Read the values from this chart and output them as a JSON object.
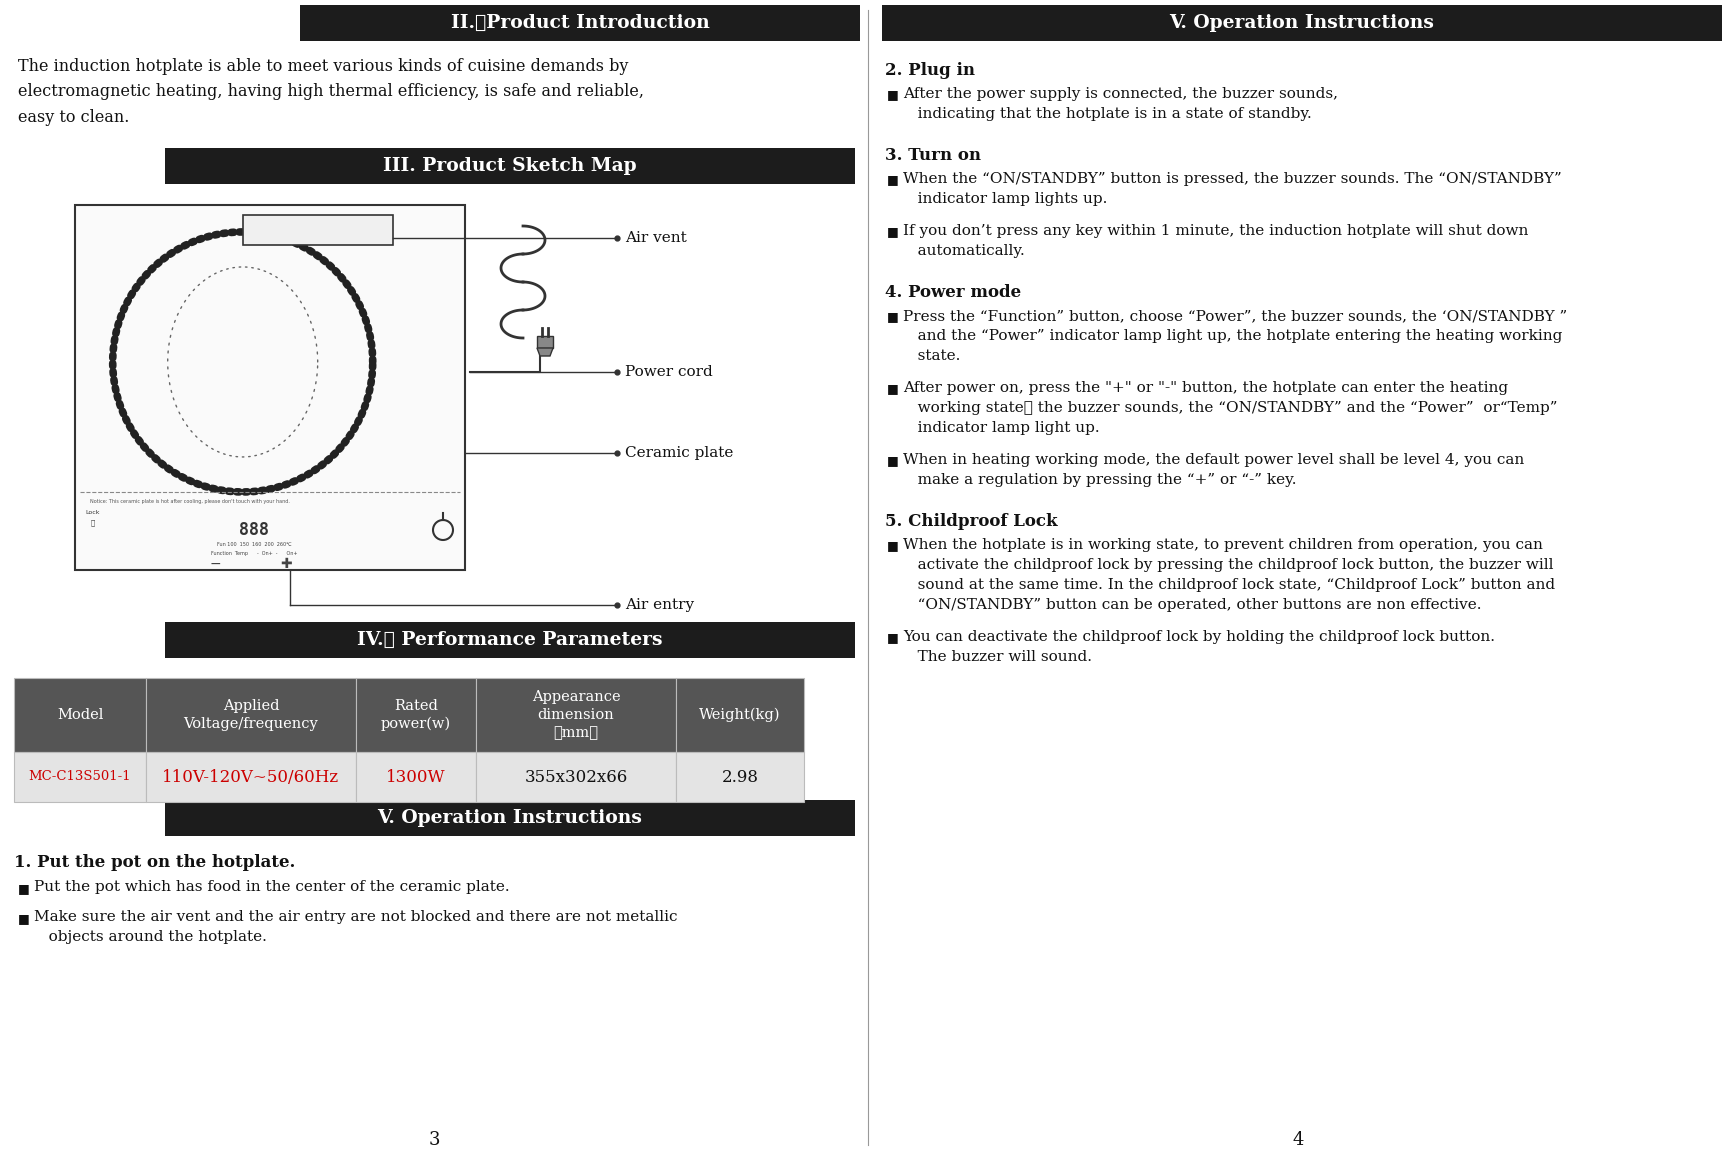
{
  "bg_color": "#ffffff",
  "left_col": {
    "section2_header": "II.　Product Introduction",
    "section2_body": "The induction hotplate is able to meet various kinds of cuisine demands by\nelectromagnetic heating, having high thermal efficiency, is safe and reliable,\neasy to clean.",
    "section3_header": "III. Product Sketch Map",
    "labels": {
      "air_vent": "Air vent",
      "power_cord": "Power cord",
      "ceramic_plate": "Ceramic plate",
      "air_entry": "Air entry"
    },
    "section4_header": "IV.　 Performance Parameters",
    "table_headers": [
      "Model",
      "Applied\nVoltage/frequency",
      "Rated\npower(w)",
      "Appearance\ndimension\n（mm）",
      "Weight(kg)"
    ],
    "table_row": [
      "MC-C13S501-1",
      "110V-120V~50/60Hz",
      "1300W",
      "355x302x66",
      "2.98"
    ],
    "section5_header": "V. Operation Instructions",
    "op1_title": "1. Put the pot on the hotplate.",
    "op1_bullets": [
      "Put the pot which has food in the center of the ceramic plate.",
      "Make sure the air vent and the air entry are not blocked and there are not metallic\n   objects around the hotplate."
    ],
    "page_num": "3"
  },
  "right_col": {
    "section5_header": "V. Operation Instructions",
    "op2_title": "2. Plug in",
    "op2_bullets": [
      "After the power supply is connected, the buzzer sounds,\n   indicating that the hotplate is in a state of standby."
    ],
    "op3_title": "3. Turn on",
    "op3_bullets": [
      "When the “ON/STANDBY” button is pressed, the buzzer sounds. The “ON/STANDBY”\n   indicator lamp lights up.",
      "If you don’t press any key within 1 minute, the induction hotplate will shut down\n   automatically."
    ],
    "op4_title": "4. Power mode",
    "op4_bullets": [
      "Press the “Function” button, choose “Power”, the buzzer sounds, the ‘ON/STANDBY ”\n   and the “Power” indicator lamp light up, the hotplate entering the heating working\n   state.",
      "After power on, press the \"+\" or \"-\" button, the hotplate can enter the heating\n   working state， the buzzer sounds, the “ON/STANDBY” and the “Power”  or“Temp”\n   indicator lamp light up.",
      "When in heating working mode, the default power level shall be level 4, you can\n   make a regulation by pressing the “+” or “-” key."
    ],
    "op5_title": "5. Childproof Lock",
    "op5_bullets": [
      "When the hotplate is in working state, to prevent children from operation, you can\n   activate the childproof lock by pressing the childproof lock button, the buzzer will\n   sound at the same time. In the childproof lock state, “Childproof Lock” button and\n   “ON/STANDBY” button can be operated, other buttons are non effective.",
      "You can deactivate the childproof lock by holding the childproof lock button.\n   The buzzer will sound."
    ],
    "page_num": "4"
  },
  "header_bg": "#1c1c1c",
  "header_fg": "#ffffff",
  "table_header_bg": "#555555",
  "table_row_bg": "#e4e4e4",
  "red_color": "#cc0000",
  "bullet_char": "■"
}
